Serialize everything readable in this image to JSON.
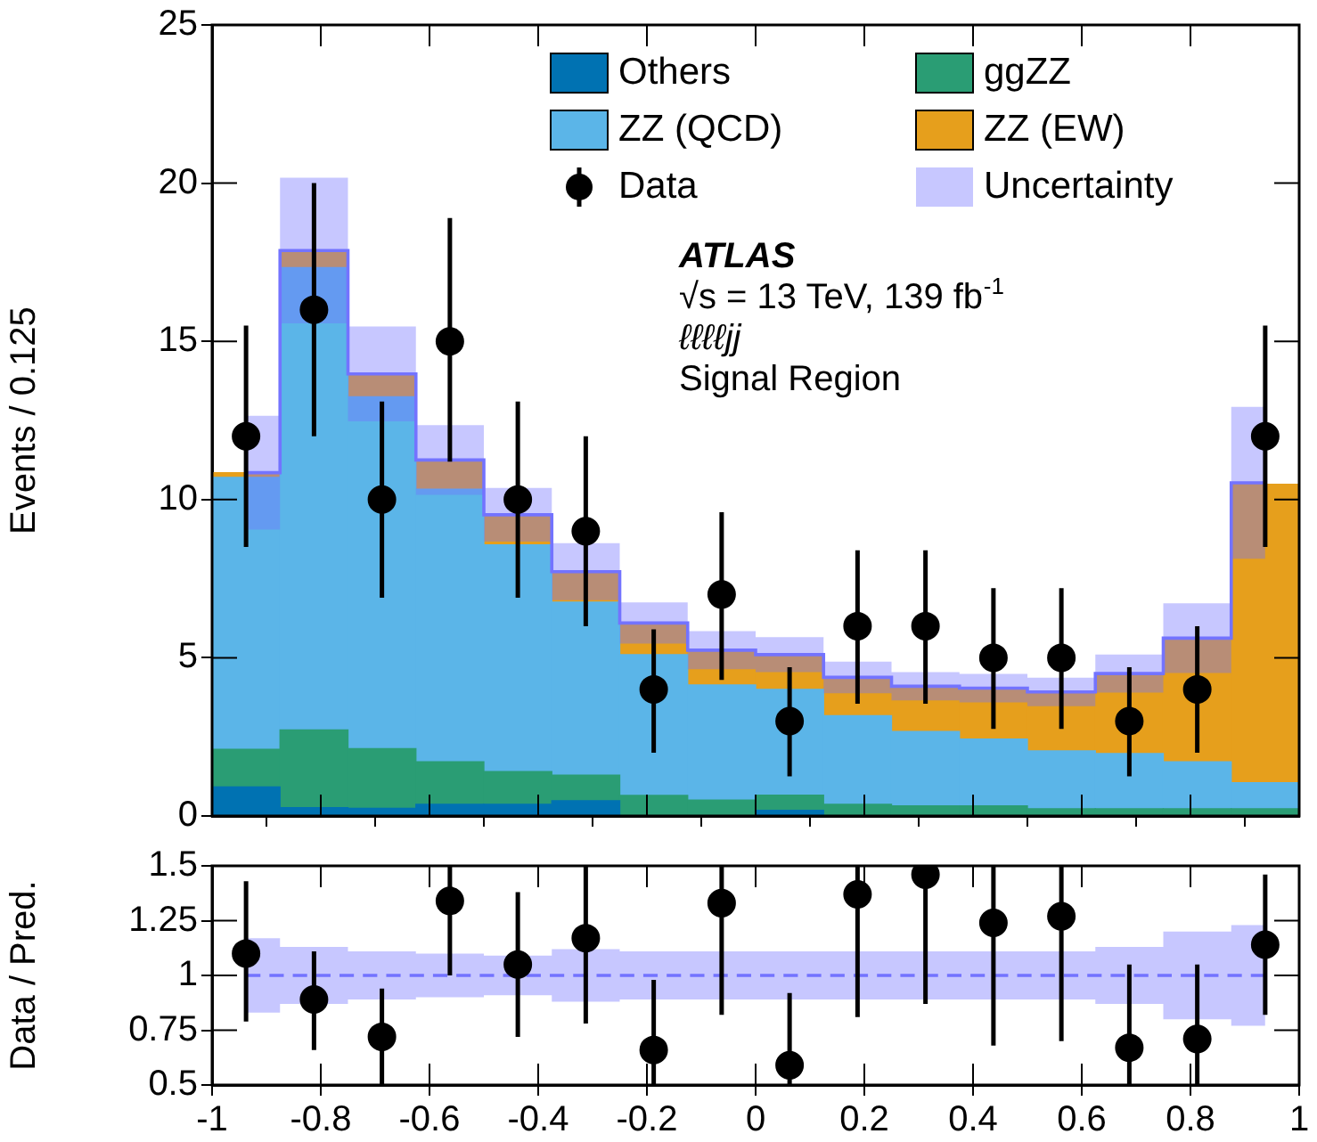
{
  "chart_data": [
    {
      "type": "bar",
      "ylabel": "Events / 0.125",
      "x": [
        -0.9375,
        -0.8125,
        -0.6875,
        -0.5625,
        -0.4375,
        -0.3125,
        -0.1875,
        -0.0625,
        0.0625,
        0.1875,
        0.3125,
        0.4375,
        0.5625,
        0.6875,
        0.8125,
        0.9375
      ],
      "stacked": true,
      "series": [
        {
          "name": "Others",
          "color": "#0072b2",
          "values": [
            0.92,
            0.26,
            0.24,
            0.37,
            0.37,
            0.48,
            null,
            null,
            0.18,
            null,
            null,
            null,
            null,
            null,
            null,
            null
          ]
        },
        {
          "name": "ggZZ",
          "color": "#2a9d74",
          "values": [
            1.19,
            2.46,
            1.89,
            1.34,
            1.03,
            0.81,
            0.65,
            0.5,
            0.48,
            0.37,
            0.32,
            0.32,
            0.23,
            0.23,
            0.23,
            0.23
          ]
        },
        {
          "name": "ZZ (QCD)",
          "color": "#5bb5e8",
          "values": [
            8.59,
            14.61,
            11.12,
            8.62,
            7.17,
            5.47,
            4.45,
            3.64,
            3.34,
            2.8,
            2.35,
            2.11,
            1.83,
            1.74,
            1.48,
            0.82
          ]
        },
        {
          "name": "ZZ (EW)",
          "color": "#e69f1c",
          "values": [
            0.15,
            0.54,
            0.72,
            0.92,
            0.95,
            0.96,
            0.95,
            1.05,
            1.1,
            1.16,
            1.38,
            1.56,
            1.81,
            2.48,
            3.86,
            9.43
          ]
        },
        {
          "name": "Data",
          "type": "scatter",
          "color": "#000000",
          "marker": "circle",
          "values": [
            12,
            16,
            10,
            15,
            10,
            9,
            4,
            7,
            3,
            6,
            6,
            5,
            5,
            3,
            4,
            12
          ],
          "errors": [
            [
              8.5,
              15.5
            ],
            [
              12,
              20
            ],
            [
              6.9,
              13.1
            ],
            [
              11.2,
              18.9
            ],
            [
              6.9,
              13.1
            ],
            [
              6,
              12
            ],
            [
              2,
              5.9
            ],
            [
              4.3,
              9.6
            ],
            [
              1.25,
              4.7
            ],
            [
              3.55,
              8.4
            ],
            [
              3.55,
              8.4
            ],
            [
              2.75,
              7.2
            ],
            [
              2.75,
              7.2
            ],
            [
              1.25,
              4.7
            ],
            [
              2,
              6
            ],
            [
              8.5,
              15.5
            ]
          ]
        },
        {
          "name": "Uncertainty",
          "type": "step",
          "color": "#7373ff",
          "values": [
            10.85,
            17.87,
            13.97,
            11.25,
            9.52,
            7.72,
            6.1,
            5.24,
            5.1,
            4.38,
            4.1,
            4.04,
            3.92,
            4.5,
            5.62,
            10.53
          ],
          "lower": [
            9.05,
            15.57,
            12.47,
            10.15,
            8.67,
            6.82,
            5.45,
            4.64,
            4.55,
            3.88,
            3.65,
            3.59,
            3.47,
            3.9,
            4.52,
            8.13
          ],
          "upper": [
            12.65,
            20.17,
            15.47,
            12.35,
            10.37,
            8.62,
            6.75,
            5.84,
            5.65,
            4.88,
            4.55,
            4.49,
            4.37,
            5.1,
            6.72,
            12.93
          ]
        }
      ],
      "xlim": [
        -1,
        1
      ],
      "xticks": [
        -1,
        -0.8,
        -0.6,
        -0.4,
        -0.2,
        0,
        0.2,
        0.4,
        0.6,
        0.8,
        1
      ],
      "ylim": [
        0,
        25
      ],
      "yticks": [
        0,
        5,
        10,
        15,
        20,
        25
      ],
      "tick_labels": "y",
      "legend": "top right",
      "annotations": [
        "ATLAS",
        "√s = 13 TeV, 139 fb$^{-1}$",
        "ℓℓℓℓjj",
        "Signal Region"
      ]
    },
    {
      "type": "scatter",
      "ylabel": "Data / Pred.",
      "x": [
        -0.9375,
        -0.8125,
        -0.6875,
        -0.5625,
        -0.4375,
        -0.3125,
        -0.1875,
        -0.0625,
        0.0625,
        0.1875,
        0.3125,
        0.4375,
        0.5625,
        0.6875,
        0.8125,
        0.9375
      ],
      "series": [
        {
          "color": "#000000",
          "marker": "circle",
          "values": [
            1.1,
            0.89,
            0.72,
            1.34,
            1.05,
            1.17,
            0.66,
            1.33,
            0.59,
            1.37,
            1.46,
            1.24,
            1.27,
            0.67,
            0.71,
            1.14
          ],
          "errors": [
            [
              0.79,
              1.43
            ],
            [
              0.66,
              1.11
            ],
            [
              0.5,
              0.94
            ],
            [
              1,
              1.5
            ],
            [
              0.72,
              1.38
            ],
            [
              0.78,
              1.5
            ],
            [
              0.5,
              0.98
            ],
            [
              0.82,
              1.5
            ],
            [
              0.5,
              0.92
            ],
            [
              0.81,
              1.5
            ],
            [
              0.87,
              1.5
            ],
            [
              0.68,
              1.5
            ],
            [
              0.7,
              1.5
            ],
            [
              0.5,
              1.05
            ],
            [
              0.5,
              1.05
            ],
            [
              0.82,
              1.46
            ]
          ]
        },
        {
          "type": "step",
          "color": "#7373ff",
          "line_style": "dashed",
          "values": [
            1,
            1,
            1,
            1,
            1,
            1,
            1,
            1,
            1,
            1,
            1,
            1,
            1,
            1,
            1,
            1
          ],
          "lower": [
            0.83,
            0.87,
            0.89,
            0.9,
            0.91,
            0.88,
            0.89,
            0.89,
            0.89,
            0.89,
            0.89,
            0.89,
            0.89,
            0.87,
            0.8,
            0.77
          ],
          "upper": [
            1.17,
            1.13,
            1.11,
            1.1,
            1.09,
            1.12,
            1.11,
            1.11,
            1.11,
            1.11,
            1.11,
            1.11,
            1.11,
            1.13,
            1.2,
            1.23
          ]
        }
      ],
      "xlim": [
        -1,
        1
      ],
      "xticks": [
        -1,
        -0.8,
        -0.6,
        -0.4,
        -0.2,
        0,
        0.2,
        0.4,
        0.6,
        0.8,
        1
      ],
      "ylim": [
        0.5,
        1.5
      ],
      "yticks": [
        0.5,
        0.75,
        1,
        1.25,
        1.5
      ]
    }
  ]
}
